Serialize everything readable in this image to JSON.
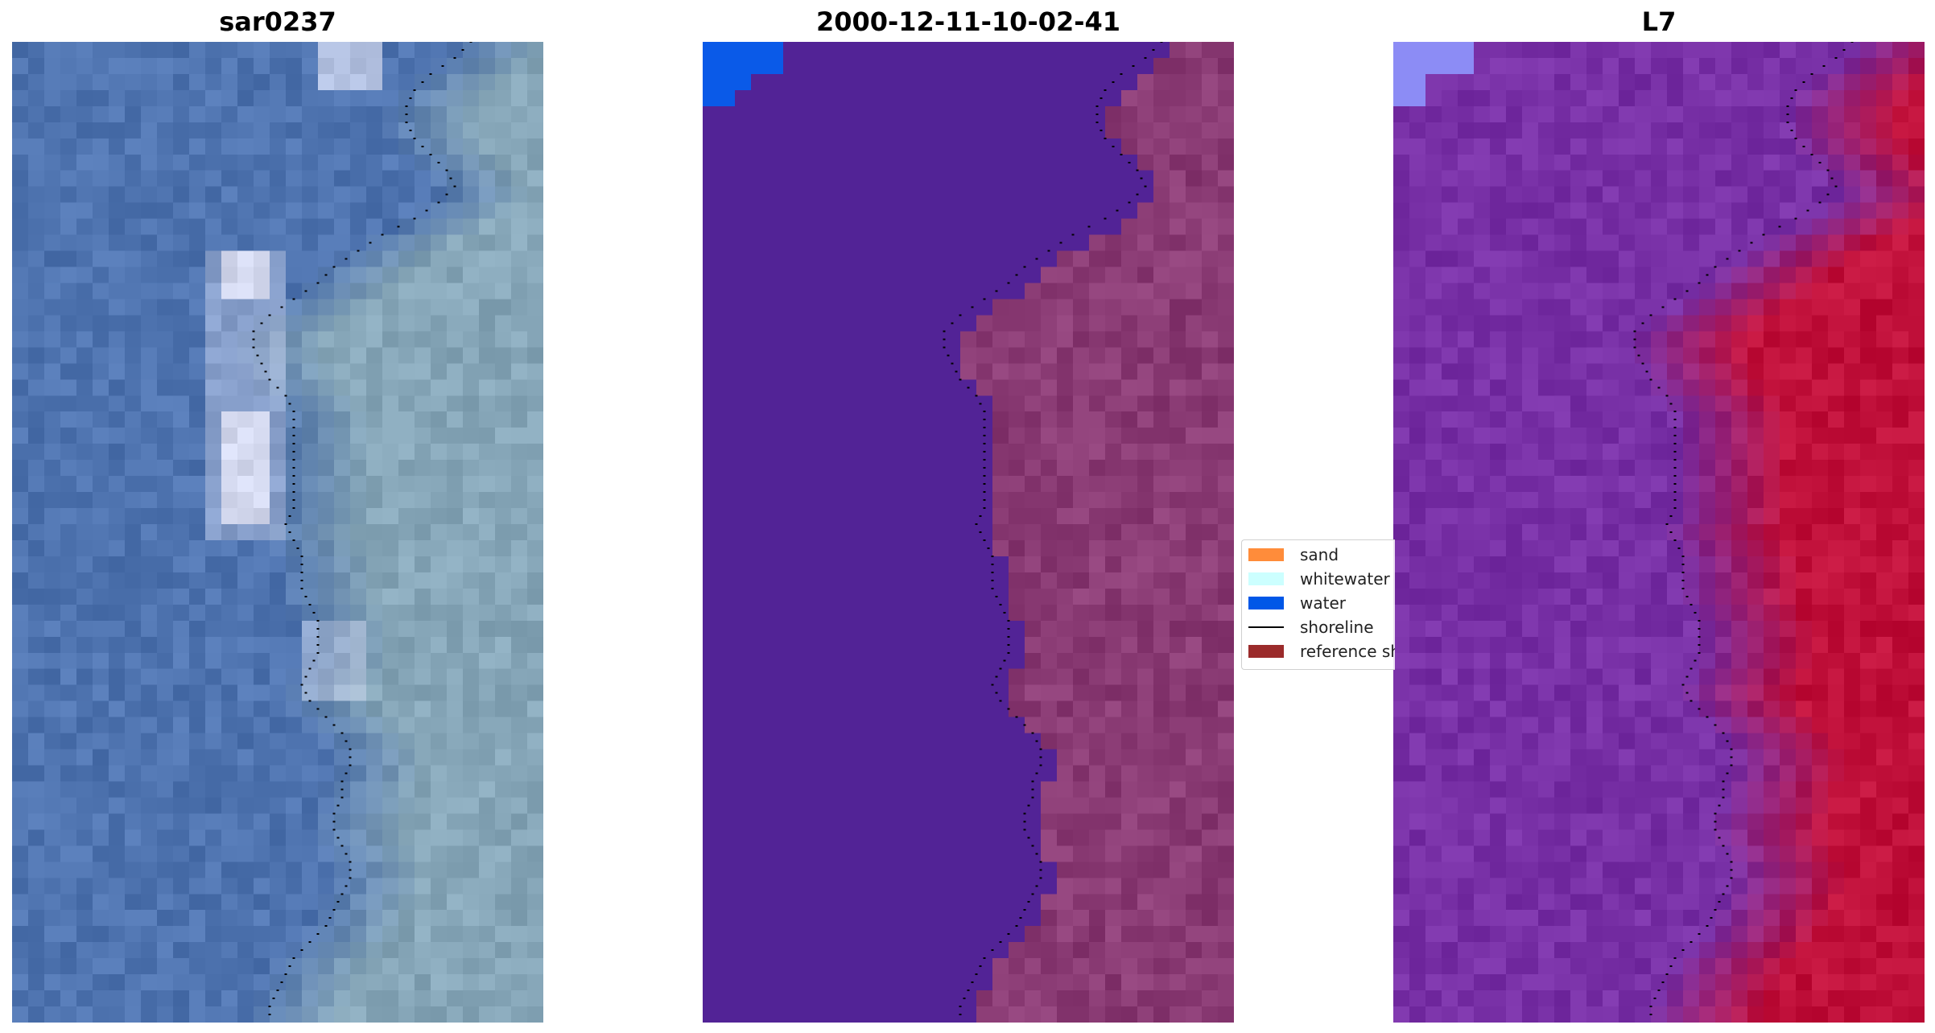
{
  "panels": [
    {
      "title": "sar0237",
      "image": "rgb-satellite-tile"
    },
    {
      "title": "2000-12-11-10-02-41",
      "image": "classified-satellite-tile"
    },
    {
      "title": "L7",
      "image": "mndwi-satellite-tile"
    }
  ],
  "legend": {
    "items": [
      {
        "label": "sand",
        "color": "#ff8c3a",
        "kind": "patch"
      },
      {
        "label": "whitewater",
        "color": "#ccffff",
        "kind": "patch"
      },
      {
        "label": "water",
        "color": "#0057e7",
        "kind": "patch"
      },
      {
        "label": "shoreline",
        "color": "#000000",
        "kind": "line"
      },
      {
        "label": "reference shoreline",
        "color": "#9b2b2b",
        "kind": "patch"
      }
    ]
  },
  "colors": {
    "rgb_water": "#4f74b0",
    "rgb_land": "#86a6b8",
    "class_water": "#522396",
    "class_land": "#8a3b74",
    "class_sea": "#0a5ae8",
    "index_water": "#7830a6",
    "index_land": "#c0103a"
  }
}
